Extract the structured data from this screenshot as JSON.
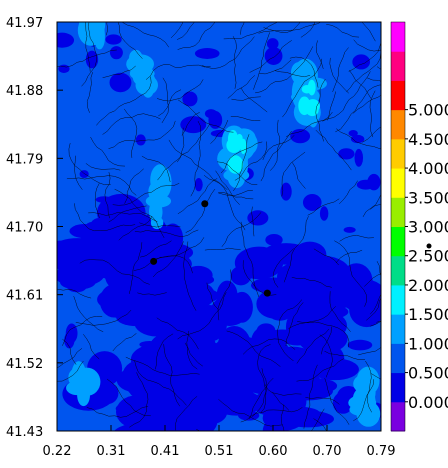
{
  "chart_data": {
    "type": "heatmap",
    "title": "",
    "xlabel": "",
    "ylabel": "",
    "xlim": [
      0.22,
      0.79
    ],
    "ylim": [
      41.43,
      41.97
    ],
    "x_ticks": [
      "0.22",
      "0.31",
      "0.41",
      "0.51",
      "0.60",
      "0.70",
      "0.79"
    ],
    "y_ticks": [
      "41.97",
      "41.88",
      "41.79",
      "41.70",
      "41.61",
      "41.52",
      "41.43"
    ],
    "colorbar": {
      "labels": [
        "0.000",
        "0.500",
        "1.000",
        "1.500",
        "2.000",
        "2.500",
        "3.000",
        "3.500",
        "4.000",
        "4.500",
        "5.000"
      ],
      "colors": [
        "#7a00e0",
        "#0000e6",
        "#0055ee",
        "#00a0ff",
        "#00f0ff",
        "#00dd88",
        "#00ff00",
        "#99ee00",
        "#ffff00",
        "#ffcc00",
        "#ff8800",
        "#ff0000",
        "#ff0080",
        "#ff00ff"
      ]
    },
    "background_level": "0.500-1.000",
    "high_regions": [
      {
        "x": 0.54,
        "y": 41.8,
        "level": "1.500-2.000"
      },
      {
        "x": 0.66,
        "y": 41.87,
        "level": "1.500-2.000"
      },
      {
        "x": 0.28,
        "y": 41.96,
        "level": "1.000-1.500"
      },
      {
        "x": 0.4,
        "y": 41.73,
        "level": "1.000-1.500"
      },
      {
        "x": 0.26,
        "y": 41.49,
        "level": "1.000-1.500"
      },
      {
        "x": 0.37,
        "y": 41.9,
        "level": "1.000-1.500"
      },
      {
        "x": 0.76,
        "y": 41.47,
        "level": "1.000-1.500"
      }
    ],
    "low_regions": [
      {
        "x": 0.36,
        "y": 41.66,
        "level": "0.000-0.500"
      },
      {
        "x": 0.44,
        "y": 41.58,
        "level": "0.000-0.500"
      },
      {
        "x": 0.66,
        "y": 41.6,
        "level": "0.000-0.500"
      },
      {
        "x": 0.4,
        "y": 41.48,
        "level": "0.000-0.500"
      },
      {
        "x": 0.62,
        "y": 41.49,
        "level": "0.000-0.500"
      }
    ],
    "markers": [
      {
        "x": 0.39,
        "y": 41.654
      },
      {
        "x": 0.48,
        "y": 41.73
      },
      {
        "x": 0.59,
        "y": 41.612
      }
    ],
    "legend_marker": true
  }
}
